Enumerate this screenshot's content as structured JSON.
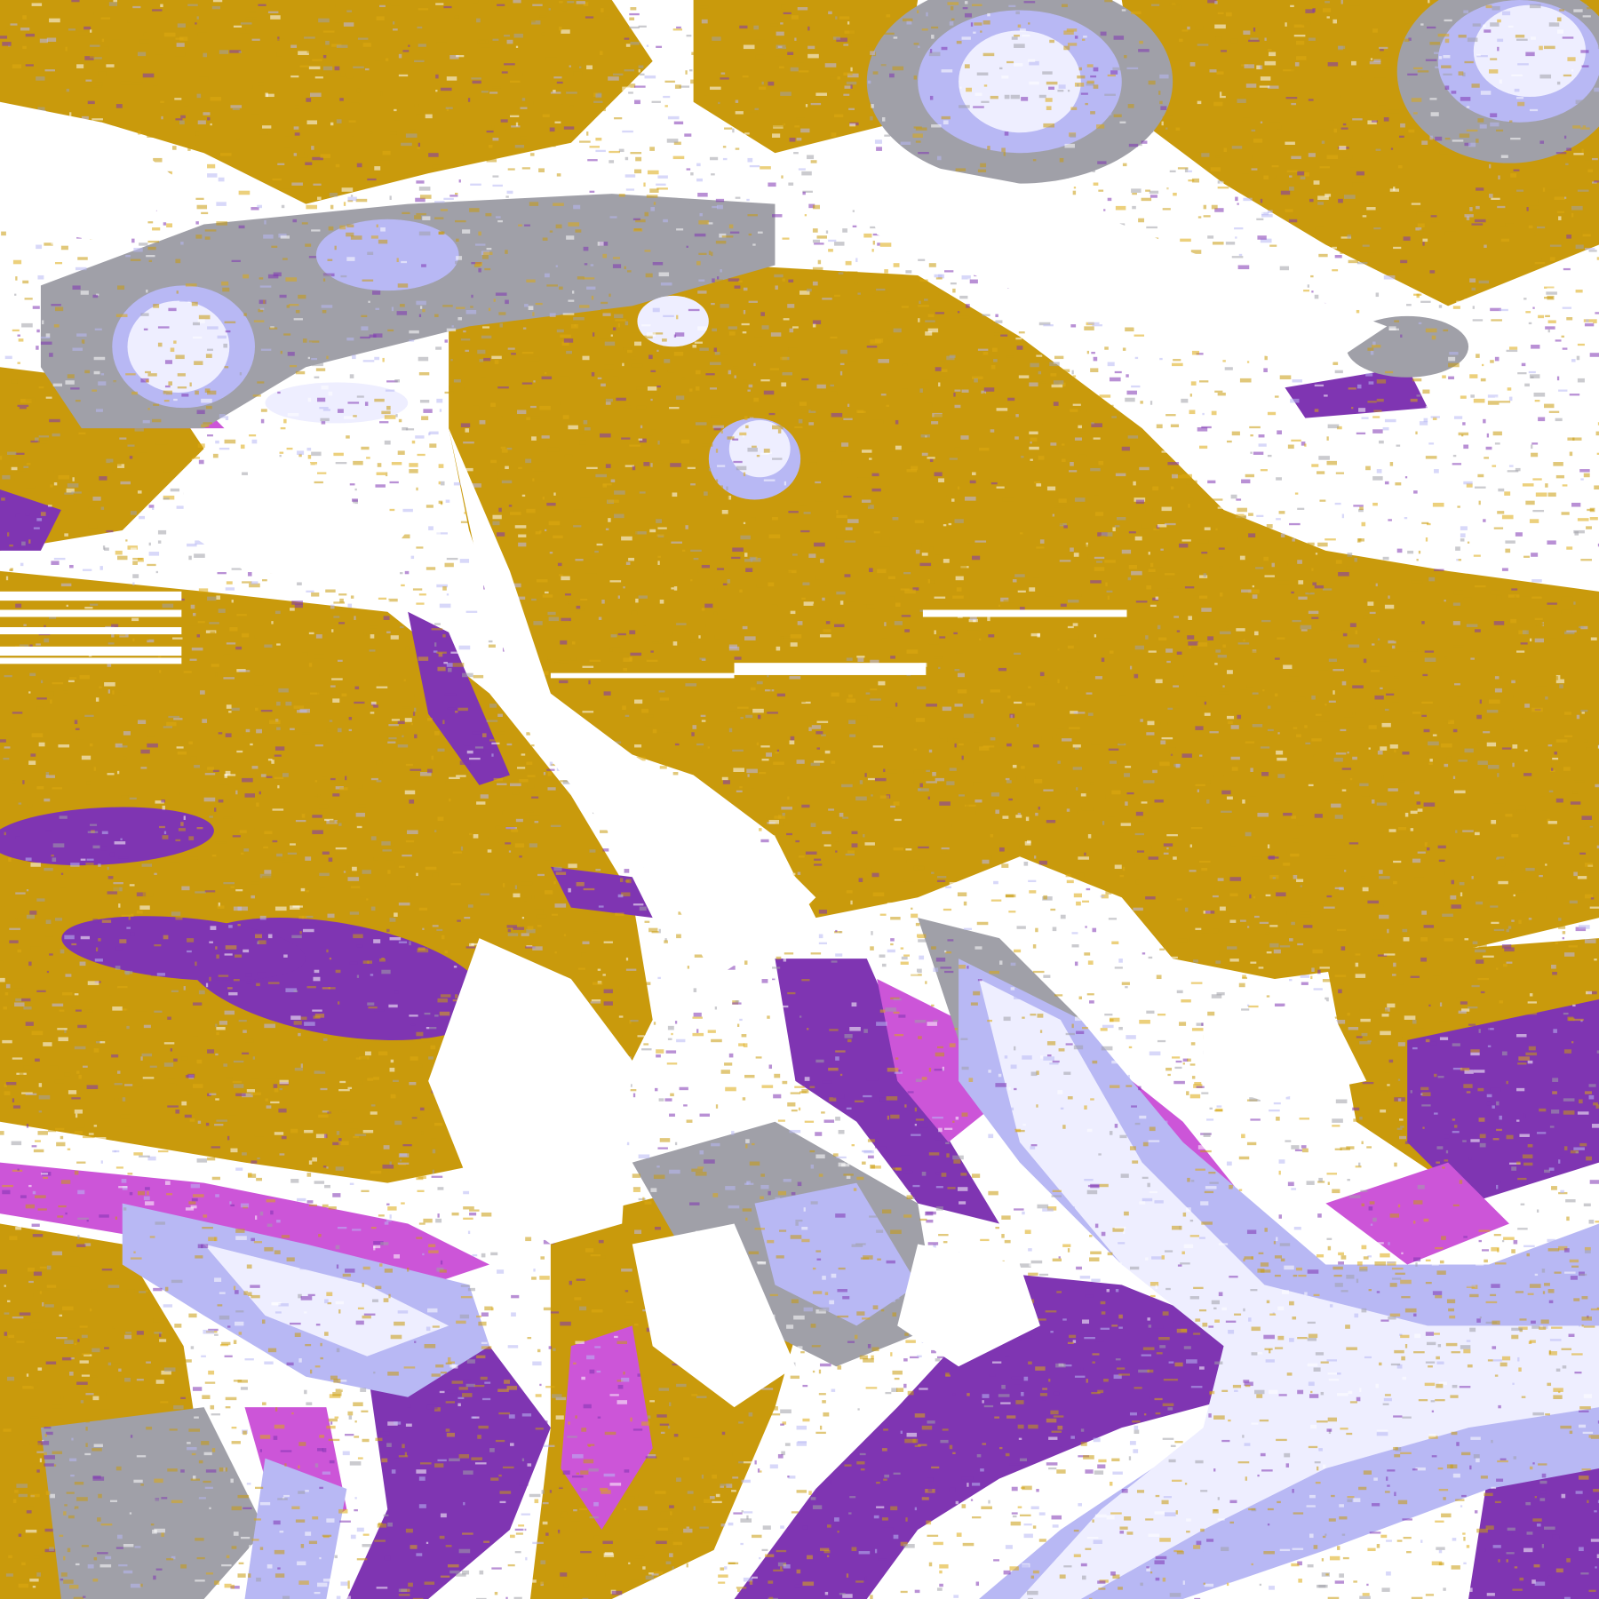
{
  "image": {
    "kind": "false-color satellite imagery",
    "palette": {
      "background": "#ffffff",
      "land_gold": "#c99a0c",
      "land_gold_light": "#dcaa10",
      "deep_purple": "#7f35b2",
      "magenta": "#cc55d8",
      "lavender": "#b8b8f4",
      "pale_cloud": "#eeeeff",
      "gray_cloud": "#a0a0a8"
    },
    "regions": [
      "storm-top-center",
      "storm-top-right",
      "cloud-band-upper-left",
      "purple-core-left",
      "cloud-band-lower-right",
      "cloud-band-lower-left",
      "scanline-artifacts"
    ]
  }
}
